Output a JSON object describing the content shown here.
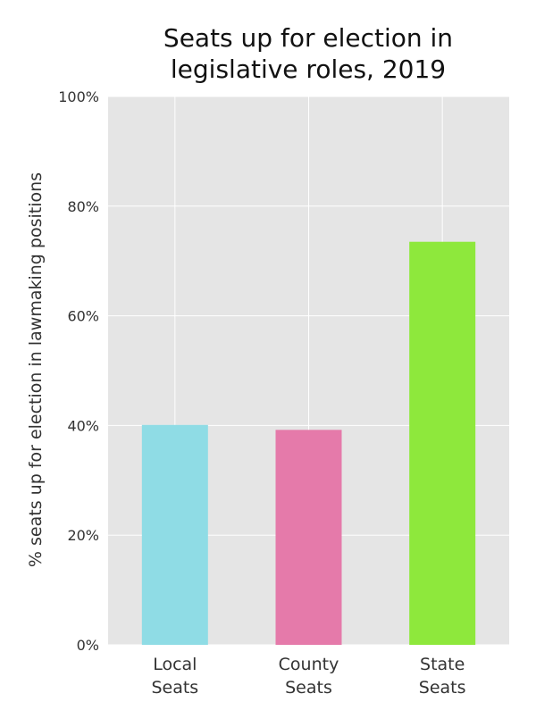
{
  "chart_data": {
    "type": "bar",
    "title_lines": [
      "Seats up for election in",
      "legislative roles, 2019"
    ],
    "xlabel": "",
    "ylabel": "% seats up for election in lawmaking positions",
    "categories": [
      [
        "Local",
        "Seats"
      ],
      [
        "County",
        "Seats"
      ],
      [
        "State",
        "Seats"
      ]
    ],
    "values": [
      40.1,
      39.2,
      73.5
    ],
    "colors": [
      "#8fdce5",
      "#e57aaa",
      "#8ee83c"
    ],
    "ylim": [
      0,
      100
    ],
    "yticks": [
      0,
      20,
      40,
      60,
      80,
      100
    ],
    "ytick_labels": [
      "0%",
      "20%",
      "40%",
      "60%",
      "80%",
      "100%"
    ],
    "grid": true,
    "background": "#e5e5e5",
    "grid_color": "#ffffff"
  }
}
